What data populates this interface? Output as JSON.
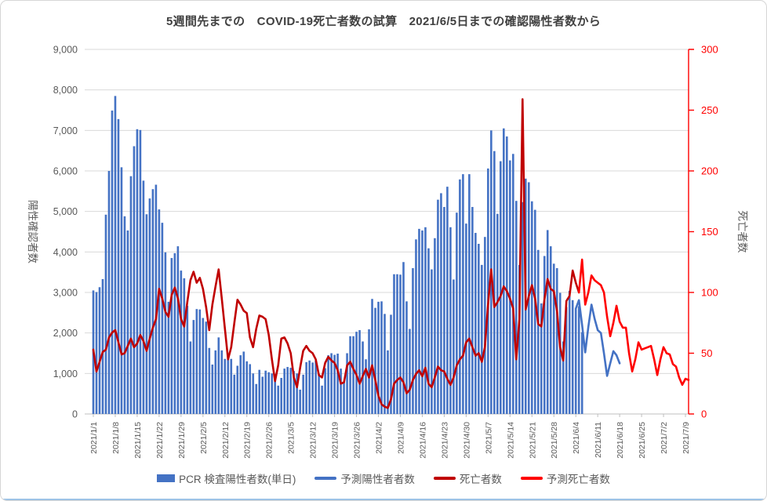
{
  "chart_data": {
    "type": [
      "bar",
      "line"
    ],
    "title": "5週間先までの　COVID-19死亡者数の試算　2021/6/5日までの確認陽性者数から",
    "left_axis": {
      "label": "陽性確認者数",
      "min": 0,
      "max": 9000,
      "step": 1000,
      "text_color": "#595959"
    },
    "right_axis": {
      "label": "死亡者数",
      "min": 0,
      "max": 300,
      "step": 50,
      "color": "#FF0000",
      "label_color": "#595959"
    },
    "grid_color": "#D9D9D9",
    "baseline_color": "#BFBFBF",
    "x_total_days": 191,
    "x_tick_labels": [
      "2021/1/1",
      "2021/1/8",
      "2021/1/15",
      "2021/1/22",
      "2021/1/29",
      "2021/2/5",
      "2021/2/12",
      "2021/2/19",
      "2021/2/26",
      "2021/3/5",
      "2021/3/12",
      "2021/3/19",
      "2021/3/26",
      "2021/4/2",
      "2021/4/9",
      "2021/4/16",
      "2021/4/23",
      "2021/4/30",
      "2021/5/7",
      "2021/5/14",
      "2021/5/21",
      "2021/5/28",
      "2021/6/4",
      "2021/6/11",
      "2021/6/18",
      "2021/6/25",
      "2021/7/2",
      "2021/7/9"
    ],
    "series": [
      {
        "name": "PCR 検査陽性者数(単日)",
        "type": "bar",
        "axis": "left",
        "color": "#4472C4",
        "start_day": 0,
        "values": [
          3050,
          3010,
          3130,
          3330,
          4920,
          6000,
          7490,
          7850,
          7280,
          6090,
          4880,
          4530,
          5870,
          6610,
          7030,
          7010,
          5760,
          4930,
          5320,
          5550,
          5660,
          5050,
          4720,
          3990,
          2770,
          3850,
          3970,
          4140,
          3540,
          3350,
          2670,
          1790,
          2320,
          2590,
          2580,
          2370,
          2280,
          1630,
          1220,
          1570,
          1890,
          1570,
          1360,
          1370,
          1360,
          970,
          1190,
          1450,
          1540,
          1300,
          1230,
          1000,
          740,
          1090,
          920,
          1070,
          1030,
          1000,
          990,
          700,
          890,
          1120,
          1160,
          1140,
          1060,
          1000,
          600,
          970,
          1280,
          1320,
          1270,
          1320,
          990,
          700,
          1130,
          1450,
          1500,
          1460,
          1490,
          1120,
          800,
          1500,
          1920,
          1920,
          2030,
          2070,
          1790,
          1350,
          2090,
          2840,
          2620,
          2770,
          2780,
          2470,
          1570,
          2450,
          3450,
          3450,
          3440,
          3750,
          2780,
          2100,
          3600,
          4310,
          4570,
          4530,
          4610,
          4090,
          3570,
          4340,
          5290,
          5450,
          5110,
          5610,
          4610,
          3320,
          4970,
          5790,
          5920,
          4700,
          5920,
          5110,
          4470,
          4200,
          3680,
          4370,
          6060,
          7000,
          6490,
          4940,
          6240,
          7050,
          6850,
          6260,
          6420,
          5260,
          3680,
          5230,
          5810,
          5720,
          5250,
          5040,
          4050,
          2730,
          3900,
          4540,
          4140,
          3710,
          3600,
          2990,
          1790,
          2640,
          3040,
          2810,
          2590,
          2660,
          2020
        ]
      },
      {
        "name": "予測陽性者者数",
        "type": "line",
        "axis": "left",
        "color": "#4472C4",
        "start_day": 154,
        "values": [
          2600,
          2810,
          2200,
          1520,
          2150,
          2700,
          2350,
          2070,
          2000,
          1500,
          940,
          1250,
          1550,
          1450,
          1250
        ]
      },
      {
        "name": "死亡者数",
        "type": "line",
        "axis": "right",
        "color": "#C00000",
        "start_day": 0,
        "values": [
          53,
          35,
          43,
          51,
          53,
          63,
          67,
          69,
          59,
          49,
          50,
          56,
          62,
          55,
          58,
          65,
          60,
          52,
          62,
          71,
          78,
          103,
          95,
          84,
          80,
          98,
          104,
          95,
          78,
          72,
          92,
          110,
          117,
          108,
          112,
          103,
          88,
          69,
          90,
          105,
          119,
          95,
          70,
          45,
          55,
          75,
          94,
          90,
          85,
          83,
          63,
          55,
          70,
          81,
          80,
          78,
          65,
          45,
          27,
          40,
          62,
          63,
          58,
          50,
          30,
          22,
          38,
          52,
          56,
          52,
          50,
          45,
          32,
          30,
          42,
          47,
          44,
          42,
          36,
          25,
          26,
          40,
          43,
          37,
          32,
          25,
          31,
          37,
          30,
          40,
          28,
          15,
          8,
          6,
          5,
          12,
          25,
          28,
          30,
          26,
          17,
          20,
          28,
          33,
          36,
          31,
          38,
          25,
          22,
          30,
          39,
          36,
          35,
          29,
          24,
          30,
          40,
          45,
          48,
          59,
          62,
          55,
          48,
          50,
          43,
          55,
          90,
          119,
          88,
          92,
          97,
          105,
          101,
          95,
          87,
          45,
          78,
          259,
          86,
          97,
          106,
          95,
          74,
          72,
          94,
          111,
          103,
          101,
          85,
          55,
          44,
          93,
          97,
          118,
          108,
          100
        ]
      },
      {
        "name": "予測死亡者数",
        "type": "line",
        "axis": "right",
        "color": "#FF0000",
        "start_day": 155,
        "values": [
          100,
          127,
          90,
          100,
          114,
          110,
          108,
          106,
          100,
          80,
          64,
          75,
          89,
          76,
          71,
          71,
          50,
          35,
          45,
          59,
          53,
          54,
          55,
          56,
          45,
          32,
          45,
          55,
          50,
          49,
          41,
          39,
          30,
          24,
          29,
          28
        ]
      }
    ]
  }
}
